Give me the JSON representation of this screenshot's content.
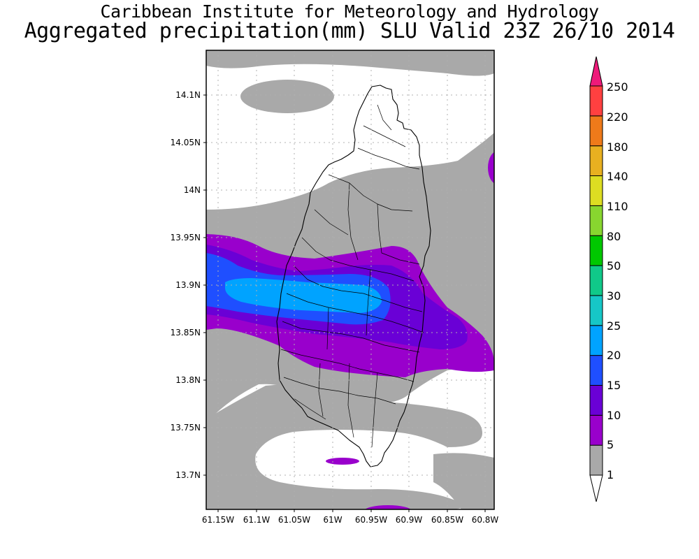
{
  "header": {
    "institute": "Caribbean Institute for Meteorology and Hydrology",
    "product": "Aggregated precipitation(mm) SLU Valid 23Z 26/10 2014"
  },
  "map": {
    "lat_labels": [
      "14.1N",
      "14.05N",
      "14N",
      "13.95N",
      "13.9N",
      "13.85N",
      "13.8N",
      "13.75N",
      "13.7N"
    ],
    "lon_labels": [
      "61.15W",
      "61.1W",
      "61.05W",
      "61W",
      "60.95W",
      "60.9W",
      "60.85W",
      "60.8W"
    ],
    "colors": {
      "r1_5": "#a9a9a9",
      "r5_10": "#9900cc",
      "r10_15": "#6a00d6",
      "r15_20": "#1f4fff",
      "r20_25": "#00a3ff"
    }
  },
  "colorbar": {
    "levels": [
      "1",
      "5",
      "10",
      "15",
      "20",
      "25",
      "30",
      "50",
      "80",
      "110",
      "140",
      "180",
      "220",
      "250"
    ],
    "colors": [
      "#ffffff",
      "#a9a9a9",
      "#9900cc",
      "#6a00d6",
      "#1f4fff",
      "#00a3ff",
      "#16c7c7",
      "#10c989",
      "#00c800",
      "#88d62f",
      "#dddd22",
      "#e8b020",
      "#ee7a1a",
      "#ff4040",
      "#ee1a7a"
    ]
  }
}
